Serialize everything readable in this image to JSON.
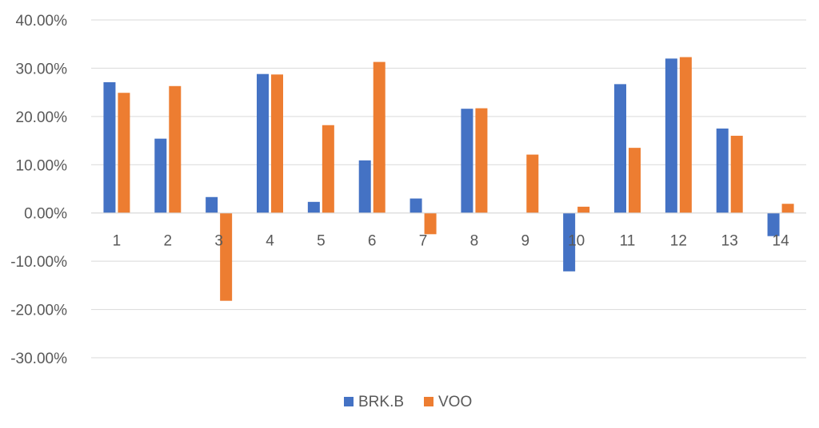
{
  "chart_data": {
    "type": "bar",
    "title": "",
    "xlabel": "",
    "ylabel": "",
    "categories": [
      "1",
      "2",
      "3",
      "4",
      "5",
      "6",
      "7",
      "8",
      "9",
      "10",
      "11",
      "12",
      "13",
      "14"
    ],
    "series": [
      {
        "name": "BRK.B",
        "color": "#4472C4",
        "values": [
          27.1,
          15.4,
          3.3,
          28.8,
          2.3,
          10.9,
          3.0,
          21.6,
          0.0,
          -12.1,
          26.7,
          32.0,
          17.5,
          -4.8
        ]
      },
      {
        "name": "VOO",
        "color": "#ED7D31",
        "values": [
          24.9,
          26.3,
          -18.2,
          28.7,
          18.2,
          31.3,
          -4.4,
          21.7,
          12.1,
          1.3,
          13.5,
          32.3,
          16.0,
          1.9
        ]
      }
    ],
    "ylim": [
      -30,
      40
    ],
    "y_ticks": [
      40,
      30,
      20,
      10,
      0,
      -10,
      -20,
      -30
    ],
    "y_tick_labels": [
      "40.00%",
      "30.00%",
      "20.00%",
      "10.00%",
      "0.00%",
      "-10.00%",
      "-20.00%",
      "-30.00%"
    ],
    "grid": true,
    "legend_position": "bottom"
  }
}
